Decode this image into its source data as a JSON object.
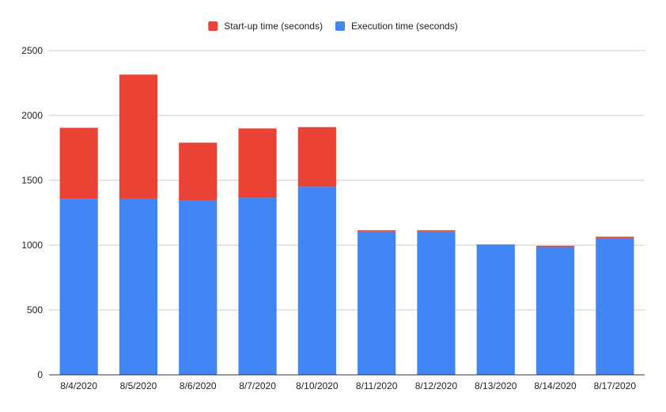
{
  "chart_data": {
    "type": "bar",
    "stacked": true,
    "categories": [
      "8/4/2020",
      "8/5/2020",
      "8/6/2020",
      "8/7/2020",
      "8/10/2020",
      "8/11/2020",
      "8/12/2020",
      "8/13/2020",
      "8/14/2020",
      "8/17/2020"
    ],
    "series": [
      {
        "name": "Execution time (seconds)",
        "color": "#4285F4",
        "values": [
          1355,
          1360,
          1345,
          1365,
          1450,
          1105,
          1105,
          1000,
          985,
          1050
        ]
      },
      {
        "name": "Start-up time (seconds)",
        "color": "#EA4335",
        "values": [
          550,
          955,
          445,
          535,
          460,
          10,
          10,
          5,
          10,
          15
        ]
      }
    ],
    "legend_order": [
      1,
      0
    ],
    "legend_position": "top",
    "title": "",
    "xlabel": "",
    "ylabel": "",
    "ylim": [
      0,
      2500
    ],
    "yticks": [
      0,
      500,
      1000,
      1500,
      2000,
      2500
    ],
    "grid": true
  }
}
